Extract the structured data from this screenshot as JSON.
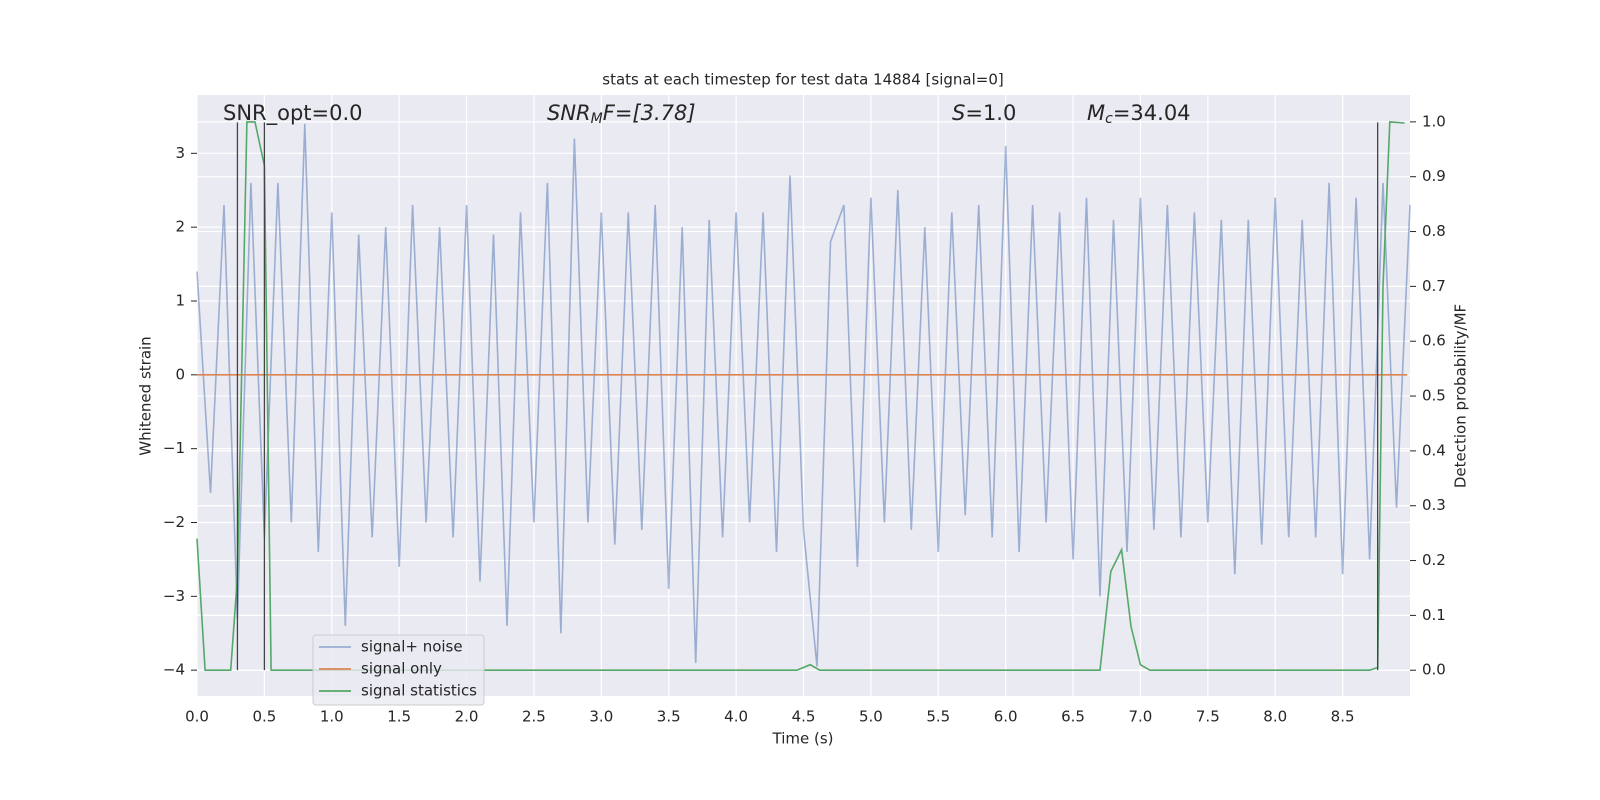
{
  "chart_data": {
    "type": "line",
    "title": "stats at each timestep for test data 14884 [signal=0]",
    "xlabel": "Time (s)",
    "ylabel": "Whitened strain",
    "y2label": "Detection probability/MF",
    "annotations": [
      [
        "SNR_opt=0.0"
      ],
      [
        "SNR",
        "M",
        "F=[3.78]"
      ],
      [
        "S",
        "=1.0"
      ],
      [
        "M",
        "c",
        "=34.04"
      ]
    ],
    "xlim": [
      0,
      9.0
    ],
    "ylim": [
      -4.35,
      3.79
    ],
    "y2lim": [
      -0.047,
      1.049
    ],
    "xticks": [
      {
        "value": 0,
        "label": "0.0"
      },
      0.5,
      {
        "value": 1,
        "label": "1.0"
      },
      1.5,
      {
        "value": 2,
        "label": "2.0"
      },
      2.5,
      {
        "value": 3,
        "label": "3.0"
      },
      3.5,
      {
        "value": 4,
        "label": "4.0"
      },
      4.5,
      {
        "value": 5,
        "label": "5.0"
      },
      5.5,
      {
        "value": 6,
        "label": "6.0"
      },
      6.5,
      {
        "value": 7,
        "label": "7.0"
      },
      7.5,
      {
        "value": 8,
        "label": "8.0"
      },
      8.5
    ],
    "yticks": [
      {
        "value": -4,
        "label": "−4"
      },
      {
        "value": -3,
        "label": "−3"
      },
      {
        "value": -2,
        "label": "−2"
      },
      {
        "value": -1,
        "label": "−1"
      },
      0,
      1,
      2,
      3
    ],
    "y2ticks": [
      {
        "value": 0,
        "label": "0.0"
      },
      0.1,
      0.2,
      0.3,
      0.4,
      0.5,
      0.6,
      0.7,
      0.8,
      0.9,
      {
        "value": 1,
        "label": "1.0"
      }
    ],
    "grid": true,
    "legend_loc": "lower left",
    "series": [
      {
        "name": "signal+ noise",
        "color": "#4c72b0",
        "opacity": 0.5,
        "x": [
          0.0,
          0.1,
          0.2,
          0.3,
          0.4,
          0.5,
          0.6,
          0.7,
          0.8,
          0.9,
          1.0,
          1.1,
          1.2,
          1.3,
          1.4,
          1.5,
          1.6,
          1.7,
          1.8,
          1.9,
          2.0,
          2.1,
          2.2,
          2.3,
          2.4,
          2.5,
          2.6,
          2.7,
          2.8,
          2.9,
          3.0,
          3.1,
          3.2,
          3.3,
          3.4,
          3.5,
          3.6,
          3.7,
          3.8,
          3.9,
          4.0,
          4.1,
          4.2,
          4.3,
          4.4,
          4.5,
          4.6,
          4.7,
          4.8,
          4.9,
          5.0,
          5.1,
          5.2,
          5.3,
          5.4,
          5.5,
          5.6,
          5.7,
          5.8,
          5.9,
          6.0,
          6.1,
          6.2,
          6.3,
          6.4,
          6.5,
          6.6,
          6.7,
          6.8,
          6.9,
          7.0,
          7.1,
          7.2,
          7.3,
          7.4,
          7.5,
          7.6,
          7.7,
          7.8,
          7.9,
          8.0,
          8.1,
          8.2,
          8.3,
          8.4,
          8.5,
          8.6,
          8.7,
          8.8,
          8.9,
          9.0
        ],
        "values": [
          1.4,
          -1.6,
          2.3,
          -3.3,
          2.6,
          -2.2,
          2.6,
          -2.0,
          3.4,
          -2.4,
          2.2,
          -3.4,
          1.9,
          -2.2,
          2.0,
          -2.6,
          2.3,
          -2.0,
          2.0,
          -2.2,
          2.3,
          -2.8,
          1.9,
          -3.4,
          2.2,
          -2.0,
          2.6,
          -3.5,
          3.2,
          -2.0,
          2.2,
          -2.3,
          2.2,
          -2.1,
          2.3,
          -2.9,
          2.0,
          -3.9,
          2.1,
          -2.2,
          2.2,
          -2.0,
          2.2,
          -2.4,
          2.7,
          -2.1,
          -3.95,
          1.8,
          2.3,
          -2.6,
          2.4,
          -2.0,
          2.5,
          -2.1,
          2.0,
          -2.4,
          2.2,
          -1.9,
          2.3,
          -2.2,
          3.1,
          -2.4,
          2.3,
          -2.0,
          2.2,
          -2.5,
          2.4,
          -3.0,
          2.1,
          -2.4,
          2.4,
          -2.1,
          2.3,
          -2.2,
          2.2,
          -2.0,
          2.1,
          -2.7,
          2.1,
          -2.3,
          2.4,
          -2.2,
          2.1,
          -2.2,
          2.6,
          -2.7,
          2.4,
          -2.5,
          2.6,
          -1.8,
          2.3
        ]
      },
      {
        "name": "signal only",
        "color": "#dd8452",
        "opacity": 1,
        "x": [
          0.0,
          8.98
        ],
        "values": [
          0,
          0
        ]
      },
      {
        "name": "signal statistics",
        "color": "#55a868",
        "opacity": 1,
        "axis": "y2",
        "x": [
          0.0,
          0.06,
          0.25,
          0.3,
          0.37,
          0.43,
          0.5,
          0.55,
          4.45,
          4.55,
          4.62,
          6.7,
          6.78,
          6.86,
          6.93,
          7.0,
          7.07,
          8.7,
          8.76,
          8.8,
          8.85,
          8.96
        ],
        "values": [
          0.24,
          0.0,
          0.0,
          0.17,
          1.0,
          1.0,
          0.92,
          0.0,
          0.0,
          0.01,
          0.0,
          0.0,
          0.18,
          0.22,
          0.08,
          0.01,
          0.0,
          0.0,
          0.005,
          0.7,
          1.0,
          0.998
        ]
      }
    ],
    "vlines": {
      "x": [
        0.3,
        0.5,
        8.76
      ],
      "ymin": -4.0,
      "ymax": 3.42
    }
  }
}
